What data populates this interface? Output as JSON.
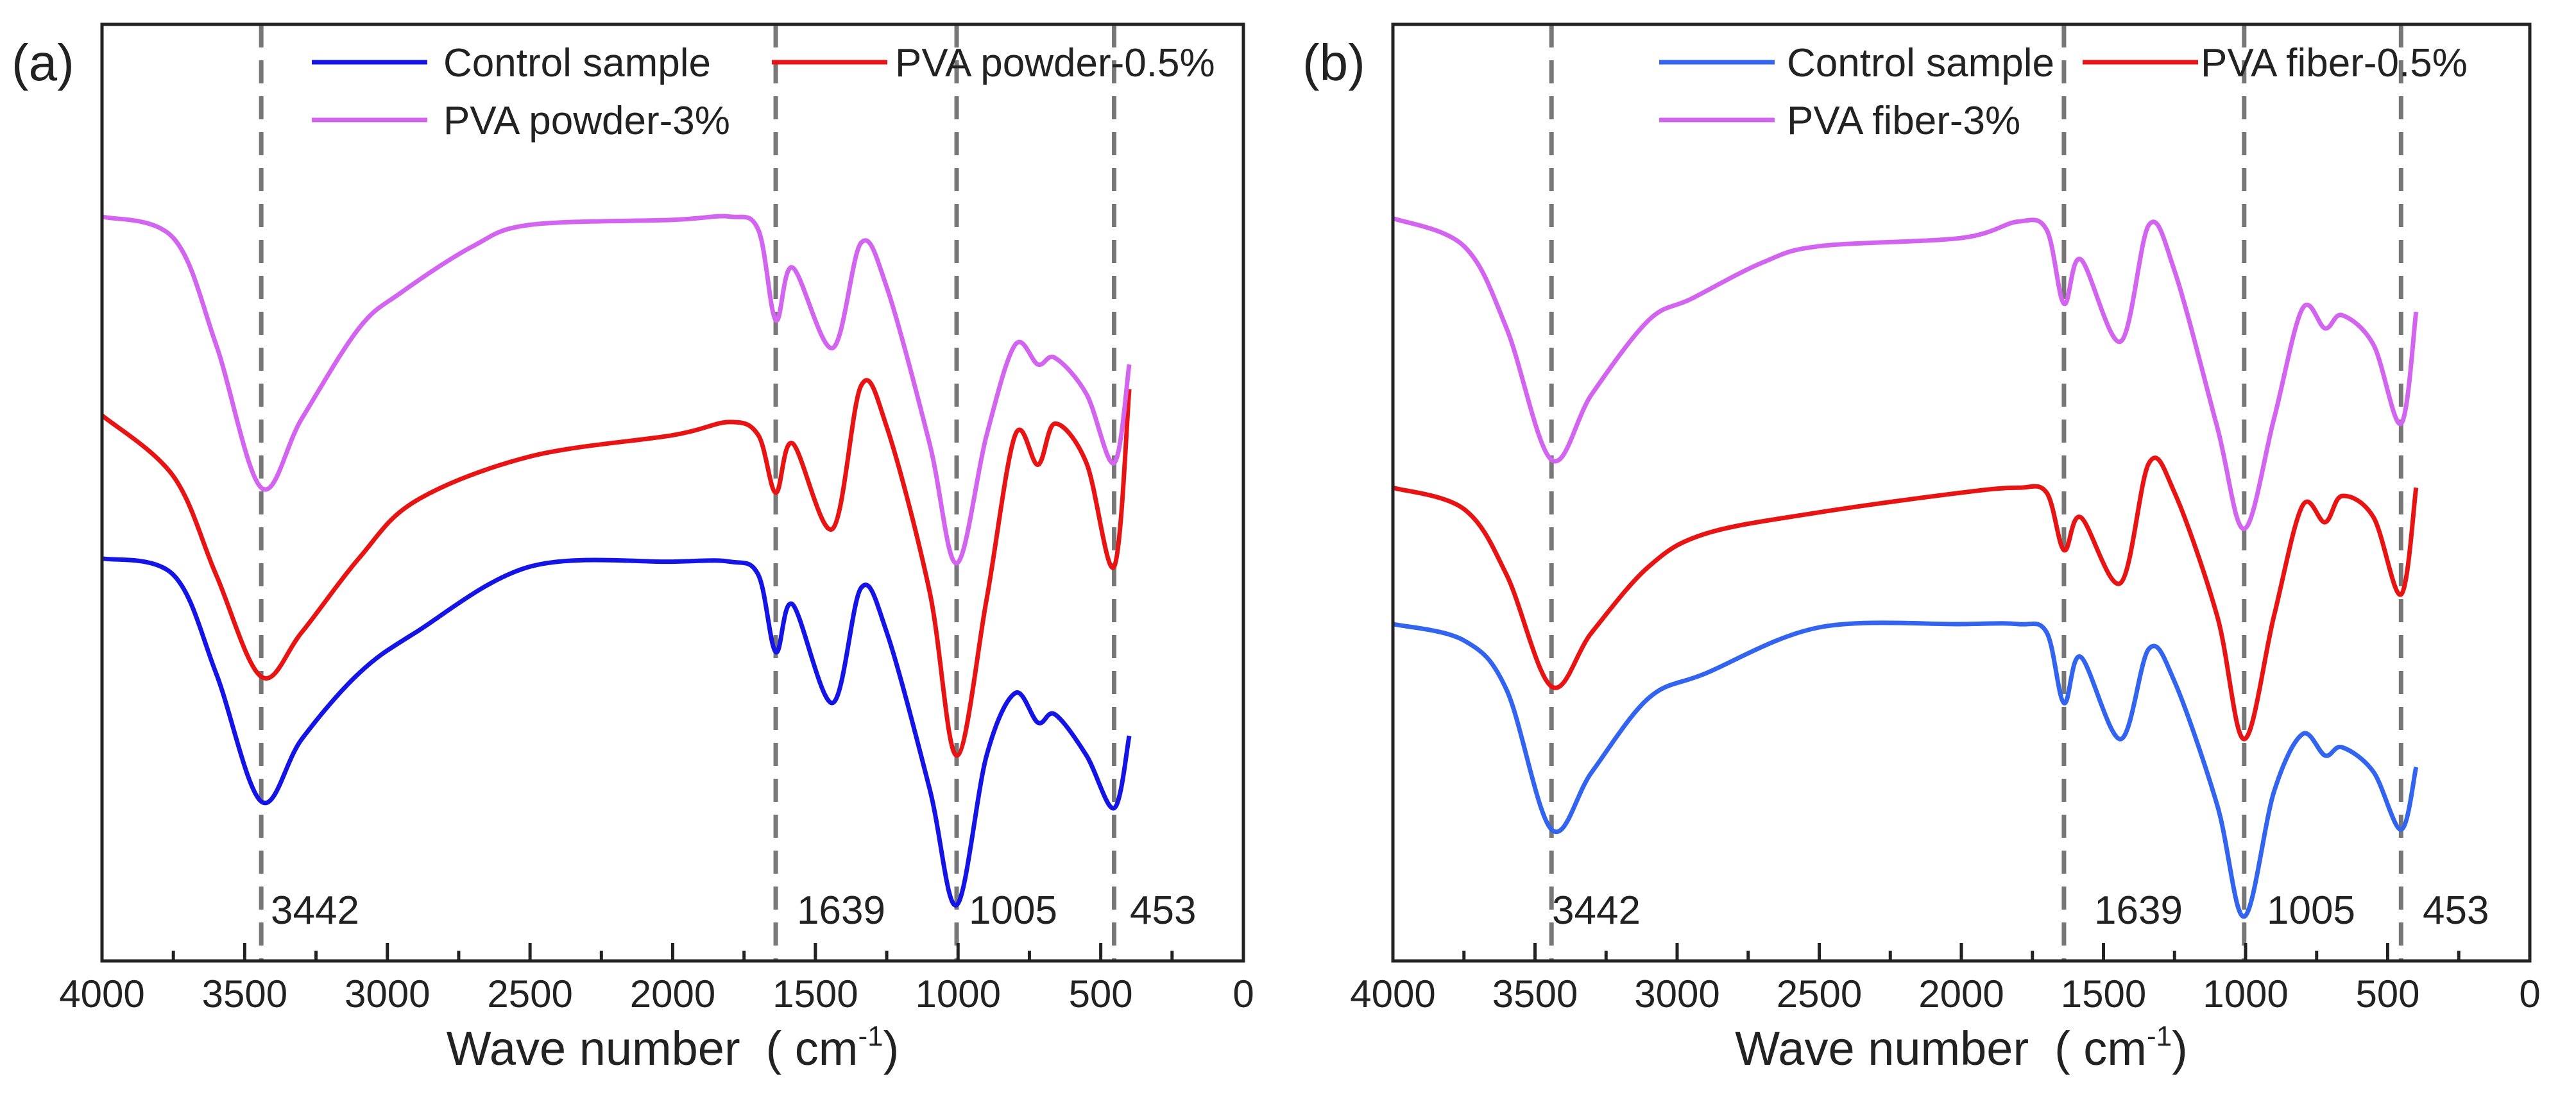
{
  "chart_data": [
    {
      "type": "line",
      "panel_label": "(a)",
      "xlabel": "Wave number",
      "xlabel_unit": "( cm",
      "xlabel_sup": "-1",
      "xlabel_close": ")",
      "ylabel": "",
      "xlim": [
        4000,
        0
      ],
      "ylim": [
        0,
        570
      ],
      "xticks": [
        4000,
        3500,
        3000,
        2500,
        2000,
        1500,
        1000,
        500,
        0
      ],
      "grid": false,
      "legend_position": "top",
      "reference_lines": [
        3442,
        1639,
        1005,
        453
      ],
      "reference_labels": [
        "3442",
        "1639",
        "1005",
        "453"
      ],
      "series": [
        {
          "name": "Control sample",
          "color": "#1414e6",
          "x": [
            4000,
            3750,
            3600,
            3442,
            3300,
            3100,
            2900,
            2500,
            2000,
            1800,
            1700,
            1639,
            1580,
            1440,
            1340,
            1250,
            1100,
            1005,
            900,
            800,
            720,
            660,
            550,
            453,
            400
          ],
          "y": [
            245,
            235,
            175,
            97,
            135,
            175,
            200,
            240,
            243,
            243,
            235,
            188,
            217,
            157,
            227,
            200,
            105,
            34,
            125,
            163,
            145,
            150,
            125,
            93,
            137
          ]
        },
        {
          "name": "PVA powder-0.5%",
          "color": "#e81414",
          "x": [
            4000,
            3750,
            3600,
            3442,
            3300,
            3100,
            2900,
            2500,
            2000,
            1800,
            1700,
            1639,
            1580,
            1440,
            1340,
            1250,
            1100,
            1005,
            900,
            800,
            720,
            660,
            550,
            453,
            400
          ],
          "y": [
            332,
            295,
            235,
            173,
            200,
            245,
            280,
            307,
            320,
            328,
            320,
            285,
            315,
            263,
            350,
            325,
            225,
            125,
            220,
            320,
            302,
            327,
            303,
            240,
            348
          ]
        },
        {
          "name": "PVA powder-3%",
          "color": "#d264f0",
          "x": [
            4000,
            3750,
            3600,
            3442,
            3300,
            3100,
            2950,
            2700,
            2500,
            2000,
            1800,
            1700,
            1639,
            1580,
            1440,
            1340,
            1250,
            1100,
            1005,
            900,
            800,
            720,
            660,
            550,
            453,
            400
          ],
          "y": [
            453,
            440,
            375,
            288,
            330,
            385,
            407,
            435,
            448,
            451,
            453,
            445,
            390,
            422,
            373,
            437,
            410,
            315,
            242,
            320,
            375,
            363,
            367,
            345,
            303,
            363
          ]
        }
      ]
    },
    {
      "type": "line",
      "panel_label": "(b)",
      "xlabel": "Wave number",
      "xlabel_unit": "( cm",
      "xlabel_sup": "-1",
      "xlabel_close": ")",
      "ylabel": "",
      "xlim": [
        4000,
        0
      ],
      "ylim": [
        0,
        570
      ],
      "xticks": [
        4000,
        3500,
        3000,
        2500,
        2000,
        1500,
        1000,
        500,
        0
      ],
      "grid": false,
      "legend_position": "top",
      "reference_lines": [
        3442,
        1639,
        1005,
        453
      ],
      "reference_labels": [
        "3442",
        "1639",
        "1005",
        "453"
      ],
      "series": [
        {
          "name": "Control sample",
          "color": "#3264f0",
          "x": [
            4000,
            3750,
            3600,
            3442,
            3300,
            3100,
            2900,
            2500,
            2000,
            1800,
            1700,
            1639,
            1580,
            1440,
            1340,
            1250,
            1100,
            1005,
            900,
            800,
            720,
            660,
            550,
            453,
            400
          ],
          "y": [
            205,
            195,
            165,
            80,
            115,
            160,
            175,
            203,
            205,
            205,
            200,
            157,
            185,
            135,
            190,
            170,
            95,
            27,
            103,
            138,
            125,
            130,
            115,
            80,
            118
          ]
        },
        {
          "name": "PVA fiber-0.5%",
          "color": "#e81414",
          "x": [
            4000,
            3750,
            3600,
            3442,
            3300,
            3100,
            2900,
            2500,
            2000,
            1800,
            1700,
            1639,
            1580,
            1440,
            1340,
            1250,
            1100,
            1005,
            900,
            800,
            720,
            660,
            550,
            453,
            400
          ],
          "y": [
            288,
            275,
            235,
            167,
            200,
            240,
            260,
            273,
            285,
            288,
            285,
            250,
            270,
            230,
            303,
            285,
            210,
            135,
            210,
            277,
            267,
            283,
            270,
            223,
            288
          ]
        },
        {
          "name": "PVA fiber-3%",
          "color": "#d264f0",
          "x": [
            4000,
            3750,
            3600,
            3442,
            3300,
            3100,
            2950,
            2700,
            2500,
            2000,
            1800,
            1700,
            1639,
            1580,
            1440,
            1340,
            1250,
            1100,
            1005,
            900,
            800,
            720,
            660,
            550,
            453,
            400
          ],
          "y": [
            452,
            435,
            385,
            305,
            345,
            390,
            403,
            425,
            435,
            440,
            450,
            445,
            400,
            427,
            377,
            448,
            420,
            325,
            263,
            330,
            397,
            385,
            393,
            375,
            327,
            395
          ]
        }
      ]
    }
  ]
}
